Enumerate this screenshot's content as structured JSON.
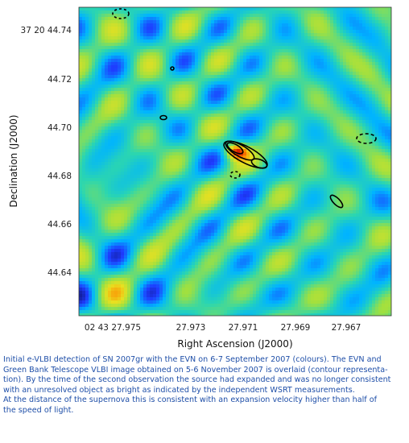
{
  "chart_data": {
    "type": "heatmap",
    "title": "",
    "xlabel": "Right Ascension (J2000)",
    "ylabel": "Declination (J2000)",
    "x_ticks": [
      "02 43 27.975",
      "27.973",
      "27.971",
      "27.969",
      "27.967"
    ],
    "y_ticks": [
      "37 20 44.74",
      "44.72",
      "44.70",
      "44.68",
      "44.66",
      "44.64"
    ],
    "colormap": [
      "#0a0a5a",
      "#1e3cff",
      "#00b4ff",
      "#2bd6b0",
      "#9fe040",
      "#e8e020",
      "#ff8a00",
      "#d42000"
    ],
    "contour_color": "#000000",
    "overlay": "contour",
    "grid": false,
    "legend": "none"
  },
  "caption": {
    "line1": "Initial e-VLBI detection of SN 2007gr with the EVN on 6-7 September 2007 (colours). The EVN and",
    "line2": "Green Bank Telescope VLBI image obtained on 5-6 November 2007 is overlaid (contour representa-",
    "line3": "tion). By the time of the second observation the source had expanded and was no longer consistent",
    "line4": "with an unresolved object as bright as indicated by the independent WSRT  measurements.",
    "line5": "At the distance of the supernova this is consistent with an expansion velocity higher than half of",
    "line6": "the speed of light."
  }
}
